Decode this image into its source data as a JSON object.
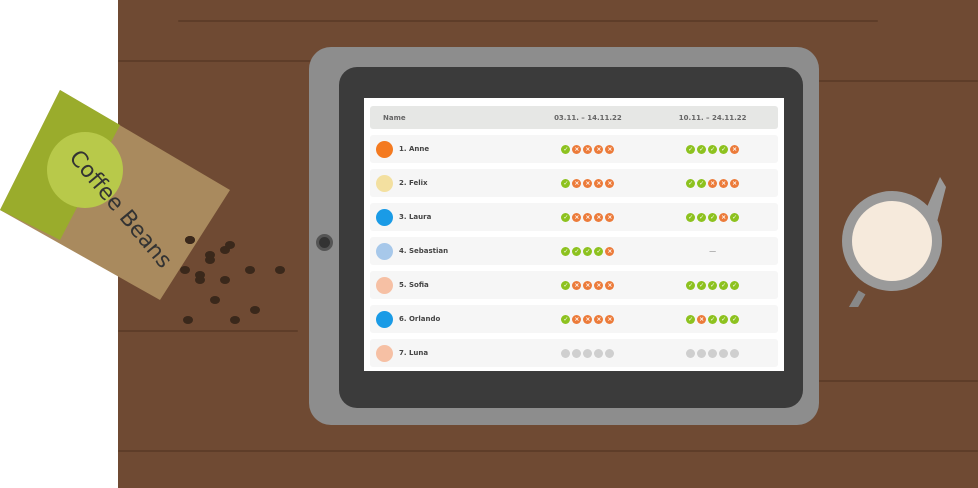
{
  "table": {
    "headers": [
      "Name",
      "03.11. – 14.11.22",
      "10.11. – 24.11.22"
    ],
    "rows": [
      {
        "name": "1. Anne",
        "avatar": "fox-avatar",
        "color": "#f47a20",
        "p1": [
          "c",
          "x",
          "x",
          "x",
          "x"
        ],
        "p2": [
          "c",
          "c",
          "c",
          "c",
          "x"
        ]
      },
      {
        "name": "2. Felix",
        "avatar": "rabbit-avatar",
        "color": "#f3e0a0",
        "p1": [
          "c",
          "x",
          "x",
          "x",
          "x"
        ],
        "p2": [
          "c",
          "c",
          "x",
          "x",
          "x"
        ]
      },
      {
        "name": "3. Laura",
        "avatar": "bird-avatar",
        "color": "#1a9be6",
        "p1": [
          "c",
          "x",
          "x",
          "x",
          "x"
        ],
        "p2": [
          "c",
          "c",
          "c",
          "x",
          "c"
        ]
      },
      {
        "name": "4. Sebastian",
        "avatar": "masked-avatar",
        "color": "#a7c8ea",
        "p1": [
          "c",
          "c",
          "c",
          "c",
          "x"
        ],
        "p2": "—"
      },
      {
        "name": "5. Sofia",
        "avatar": "pig-avatar",
        "color": "#f6c0a4",
        "p1": [
          "c",
          "x",
          "x",
          "x",
          "x"
        ],
        "p2": [
          "c",
          "c",
          "c",
          "c",
          "c"
        ]
      },
      {
        "name": "6. Orlando",
        "avatar": "bird-avatar",
        "color": "#1a9be6",
        "p1": [
          "c",
          "x",
          "x",
          "x",
          "x"
        ],
        "p2": [
          "c",
          "x",
          "c",
          "c",
          "c"
        ]
      },
      {
        "name": "7. Luna",
        "avatar": "pig-avatar",
        "color": "#f6c0a4",
        "p1": [
          "g",
          "g",
          "g",
          "g",
          "g"
        ],
        "p2": [
          "g",
          "g",
          "g",
          "g",
          "g"
        ]
      }
    ]
  },
  "decor": {
    "bag_text": "Coffee Beans"
  },
  "colors": {
    "check": "#8dc21f",
    "cross": "#ec7b3a",
    "pending": "#cfcfcf"
  }
}
